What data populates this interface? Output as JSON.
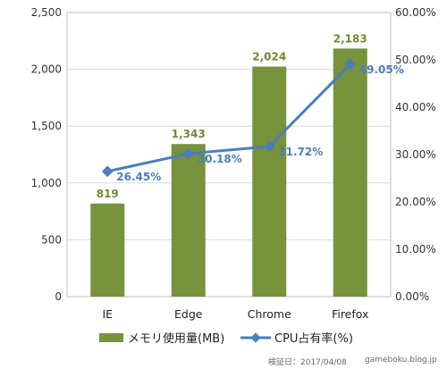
{
  "chart_data": {
    "type": "bar+line",
    "categories": [
      "IE",
      "Edge",
      "Chrome",
      "Firefox"
    ],
    "series": [
      {
        "name": "メモリ使用量(MB)",
        "type": "bar",
        "axis": "left",
        "color": "#77933c",
        "values": [
          819,
          1343,
          2024,
          2183
        ],
        "labels": [
          "819",
          "1,343",
          "2,024",
          "2,183"
        ]
      },
      {
        "name": "CPU占有率(%)",
        "type": "line",
        "axis": "right",
        "color": "#4a7ebb",
        "values": [
          26.45,
          30.18,
          31.72,
          49.05
        ],
        "labels": [
          "26.45%",
          "30.18%",
          "31.72%",
          "49.05%"
        ]
      }
    ],
    "y_left": {
      "min": 0,
      "max": 2500,
      "ticks": [
        {
          "v": 0,
          "label": "0"
        },
        {
          "v": 500,
          "label": "500"
        },
        {
          "v": 1000,
          "label": "1,000"
        },
        {
          "v": 1500,
          "label": "1,500"
        },
        {
          "v": 2000,
          "label": "2,000"
        },
        {
          "v": 2500,
          "label": "2,500"
        }
      ]
    },
    "y_right": {
      "min": 0,
      "max": 60,
      "ticks": [
        {
          "v": 0,
          "label": "0.00%"
        },
        {
          "v": 10,
          "label": "10.00%"
        },
        {
          "v": 20,
          "label": "20.00%"
        },
        {
          "v": 30,
          "label": "30.00%"
        },
        {
          "v": 40,
          "label": "40.00%"
        },
        {
          "v": 50,
          "label": "50.00%"
        },
        {
          "v": 60,
          "label": "60.00%"
        }
      ]
    },
    "grid": true,
    "legend": "bottom"
  },
  "footer": {
    "date": "検証日：2017/04/08",
    "site": "gameboku.blog.jp"
  }
}
